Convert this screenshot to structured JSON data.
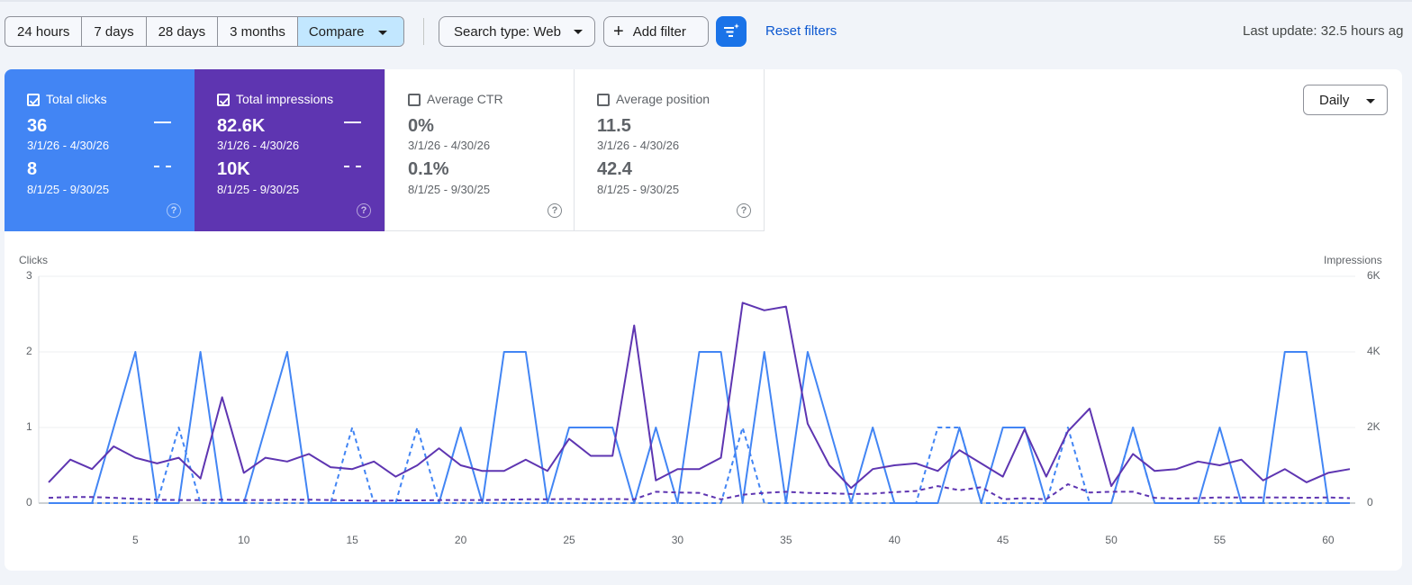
{
  "toolbar": {
    "ranges": [
      "24 hours",
      "7 days",
      "28 days",
      "3 months"
    ],
    "compare_label": "Compare",
    "search_type_label": "Search type: Web",
    "add_filter_label": "Add filter",
    "reset_filters_label": "Reset filters",
    "last_update": "Last update: 32.5 hours ag"
  },
  "metrics": [
    {
      "label": "Total clicks",
      "checked": true,
      "current_value": "36",
      "current_range": "3/1/26 - 4/30/26",
      "previous_value": "8",
      "previous_range": "8/1/25 - 9/30/25",
      "color": "#4285f4"
    },
    {
      "label": "Total impressions",
      "checked": true,
      "current_value": "82.6K",
      "current_range": "3/1/26 - 4/30/26",
      "previous_value": "10K",
      "previous_range": "8/1/25 - 9/30/25",
      "color": "#5e35b1"
    },
    {
      "label": "Average CTR",
      "checked": false,
      "current_value": "0%",
      "current_range": "3/1/26 - 4/30/26",
      "previous_value": "0.1%",
      "previous_range": "8/1/25 - 9/30/25"
    },
    {
      "label": "Average position",
      "checked": false,
      "current_value": "11.5",
      "current_range": "3/1/26 - 4/30/26",
      "previous_value": "42.4",
      "previous_range": "8/1/25 - 9/30/25"
    }
  ],
  "granularity_label": "Daily",
  "help_glyph": "?",
  "icons": {
    "filter": "filter-sparkle-icon",
    "help": "help-circle-icon",
    "check": "check-icon",
    "plus": "plus-icon",
    "caret": "caret-down-icon"
  },
  "chart_data": {
    "type": "line",
    "y_left_label": "Clicks",
    "y_right_label": "Impressions",
    "y_left_ticks": [
      "0",
      "1",
      "2",
      "3"
    ],
    "y_right_ticks": [
      "0",
      "2K",
      "4K",
      "6K"
    ],
    "y_left_lim": [
      0,
      3
    ],
    "y_right_lim": [
      0,
      6000
    ],
    "x_ticks": [
      "5",
      "10",
      "15",
      "20",
      "25",
      "30",
      "35",
      "40",
      "45",
      "50",
      "55",
      "60"
    ],
    "x": [
      1,
      2,
      3,
      4,
      5,
      6,
      7,
      8,
      9,
      10,
      11,
      12,
      13,
      14,
      15,
      16,
      17,
      18,
      19,
      20,
      21,
      22,
      23,
      24,
      25,
      26,
      27,
      28,
      29,
      30,
      31,
      32,
      33,
      34,
      35,
      36,
      37,
      38,
      39,
      40,
      41,
      42,
      43,
      44,
      45,
      46,
      47,
      48,
      49,
      50,
      51,
      52,
      53,
      54,
      55,
      56,
      57,
      58,
      59,
      60,
      61
    ],
    "xlim": [
      1,
      61
    ],
    "series": [
      {
        "axis": "left",
        "style": "solid",
        "color": "#4285f4",
        "values": [
          0,
          0,
          0,
          1,
          2,
          0,
          0,
          2,
          0,
          0,
          1,
          2,
          0,
          0,
          0,
          0,
          0,
          0,
          0,
          1,
          0,
          2,
          2,
          0,
          1,
          1,
          1,
          0,
          1,
          0,
          2,
          2,
          0,
          2,
          0,
          2,
          1,
          0,
          1,
          0,
          0,
          0,
          1,
          0,
          1,
          1,
          0,
          0,
          0,
          0,
          1,
          0,
          0,
          0,
          1,
          0,
          0,
          2,
          2,
          0,
          0
        ]
      },
      {
        "axis": "left",
        "style": "dashed",
        "color": "#4285f4",
        "values": [
          0,
          0,
          0,
          0,
          0,
          0,
          1,
          0,
          0,
          0,
          0,
          0,
          0,
          0,
          1,
          0,
          0,
          1,
          0,
          0,
          0,
          0,
          0,
          0,
          0,
          0,
          0,
          0,
          0,
          0,
          0,
          0,
          1,
          0,
          0,
          0,
          0,
          0,
          0,
          0,
          0,
          1,
          1,
          0,
          0,
          0,
          0,
          1,
          0,
          0,
          1,
          0,
          0,
          0,
          0,
          0,
          0,
          0,
          0,
          0,
          0
        ]
      },
      {
        "axis": "right",
        "style": "solid",
        "color": "#5e35b1",
        "values": [
          550,
          1150,
          900,
          1500,
          1200,
          1050,
          1200,
          650,
          2800,
          800,
          1200,
          1100,
          1300,
          950,
          900,
          1100,
          700,
          1000,
          1450,
          1000,
          850,
          850,
          1150,
          850,
          1700,
          1250,
          1250,
          4700,
          600,
          900,
          900,
          1200,
          5300,
          5100,
          5200,
          2100,
          1000,
          400,
          900,
          1000,
          1050,
          850,
          1400,
          1050,
          700,
          1950,
          700,
          1900,
          2500,
          450,
          1300,
          850,
          900,
          1100,
          1000,
          1150,
          600,
          900,
          550,
          800,
          900
        ]
      },
      {
        "axis": "right",
        "style": "dashed",
        "color": "#5e35b1",
        "values": [
          140,
          160,
          160,
          140,
          110,
          90,
          80,
          80,
          90,
          80,
          80,
          90,
          90,
          80,
          70,
          60,
          70,
          70,
          80,
          80,
          80,
          90,
          100,
          100,
          110,
          100,
          110,
          100,
          300,
          280,
          270,
          100,
          220,
          270,
          300,
          270,
          260,
          240,
          250,
          290,
          320,
          450,
          340,
          420,
          100,
          130,
          100,
          500,
          280,
          300,
          300,
          140,
          120,
          130,
          150,
          150,
          150,
          150,
          140,
          150,
          130
        ]
      }
    ]
  }
}
